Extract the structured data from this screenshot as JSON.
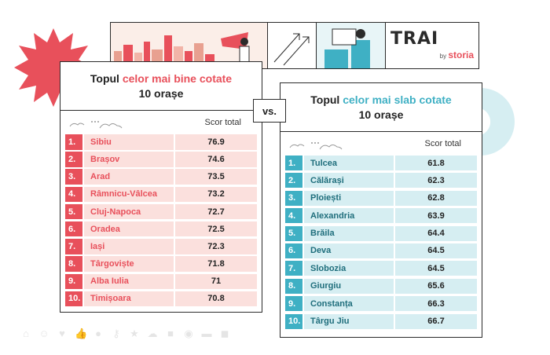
{
  "left": {
    "title_pre": "Topul ",
    "title_hl": "celor mai bine cotate",
    "title_line2": "10 orașe",
    "score_label": "Scor total",
    "rows": [
      {
        "n": "1.",
        "city": "Sibiu",
        "score": "76.9"
      },
      {
        "n": "2.",
        "city": "Brașov",
        "score": "74.6"
      },
      {
        "n": "3.",
        "city": "Arad",
        "score": "73.5"
      },
      {
        "n": "4.",
        "city": "Râmnicu-Vâlcea",
        "score": "73.2"
      },
      {
        "n": "5.",
        "city": "Cluj-Napoca",
        "score": "72.7"
      },
      {
        "n": "6.",
        "city": "Oradea",
        "score": "72.5"
      },
      {
        "n": "7.",
        "city": "Iași",
        "score": "72.3"
      },
      {
        "n": "8.",
        "city": "Târgoviște",
        "score": "71.8"
      },
      {
        "n": "9.",
        "city": "Alba Iulia",
        "score": "71"
      },
      {
        "n": "10.",
        "city": "Timișoara",
        "score": "70.8"
      }
    ]
  },
  "right": {
    "title_pre": "Topul ",
    "title_hl": "celor mai slab cotate",
    "title_line2": "10 orașe",
    "score_label": "Scor total",
    "rows": [
      {
        "n": "1.",
        "city": "Tulcea",
        "score": "61.8"
      },
      {
        "n": "2.",
        "city": "Călărași",
        "score": "62.3"
      },
      {
        "n": "3.",
        "city": "Ploiești",
        "score": "62.8"
      },
      {
        "n": "4.",
        "city": "Alexandria",
        "score": "63.9"
      },
      {
        "n": "5.",
        "city": "Brăila",
        "score": "64.4"
      },
      {
        "n": "6.",
        "city": "Deva",
        "score": "64.5"
      },
      {
        "n": "7.",
        "city": "Slobozia",
        "score": "64.5"
      },
      {
        "n": "8.",
        "city": "Giurgiu",
        "score": "65.6"
      },
      {
        "n": "9.",
        "city": "Constanța",
        "score": "66.3"
      },
      {
        "n": "10.",
        "city": "Târgu Jiu",
        "score": "66.7"
      }
    ]
  },
  "vs_label": "vs.",
  "logo": {
    "letters": "TRAI",
    "by": "by",
    "brand": "storia"
  },
  "colors": {
    "red": "#e8505b",
    "teal": "#3fb0c4",
    "red_light": "#fbe0dd",
    "teal_light": "#d6eef2"
  },
  "decor_icons": [
    "home-icon",
    "smile-icon",
    "heart-icon",
    "thumbs-up-icon",
    "pin-icon",
    "key-icon",
    "star-icon",
    "cloud-icon",
    "lock-icon",
    "eye-icon",
    "sofa-icon",
    "chat-icon"
  ]
}
